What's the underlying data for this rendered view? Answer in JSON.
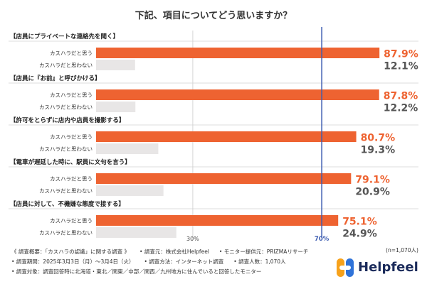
{
  "chart_data": {
    "type": "bar",
    "orientation": "horizontal",
    "title": "下記、項目についてどう思いますか？",
    "xlim": [
      0,
      100
    ],
    "reference_line": {
      "value": 70,
      "label": "70%"
    },
    "gridlines": [
      {
        "value": 30,
        "label": "30%"
      }
    ],
    "series": [
      {
        "name": "カスハラだと思う",
        "color": "#ee6331"
      },
      {
        "name": "カスハラだと思わない",
        "color": "#e8e6e6"
      }
    ],
    "groups": [
      {
        "label": "【店員にプライベートな連絡先を聞く】",
        "values": [
          87.9,
          12.1
        ],
        "value_labels": [
          "87.9%",
          "12.1%"
        ]
      },
      {
        "label": "【店員に『お前』と呼びかける】",
        "values": [
          87.8,
          12.2
        ],
        "value_labels": [
          "87.8%",
          "12.2%"
        ]
      },
      {
        "label": "【許可をとらずに店内や店員を撮影する】",
        "values": [
          80.7,
          19.3
        ],
        "value_labels": [
          "80.7%",
          "19.3%"
        ]
      },
      {
        "label": "【電車が遅延した時に、駅員に文句を言う】",
        "values": [
          79.1,
          20.9
        ],
        "value_labels": [
          "79.1%",
          "20.9%"
        ]
      },
      {
        "label": "【店員に対して、不機嫌な態度で接する】",
        "values": [
          75.1,
          24.9
        ],
        "value_labels": [
          "75.1%",
          "24.9%"
        ]
      }
    ],
    "colors": {
      "accent": "#ee6331",
      "secondary_bar": "#e8e6e6",
      "reference_line": "#3b5bb0",
      "value_secondary": "#555555"
    }
  },
  "notes": {
    "rows": [
      [
        "《 調査概要：「カスハラの認識」に関する調査 》",
        "• 調査元：株式会社Helpfeel",
        "• モニター提供元：PRIZMAリサーチ"
      ],
      [
        "• 調査期間：2025年3月3日（月）〜3月4日（火）",
        "• 調査方法：インターネット調査",
        "• 調査人数：1,070人"
      ],
      [
        "• 調査対象：調査回答時に北海道・東北／関東／中部／関西／九州地方に住んでいると回答したモニター"
      ]
    ],
    "sample_size": "(n=1,070人)"
  },
  "brand": {
    "name": "Helpfeel",
    "logo_icon": "helpfeel-logo-icon"
  }
}
